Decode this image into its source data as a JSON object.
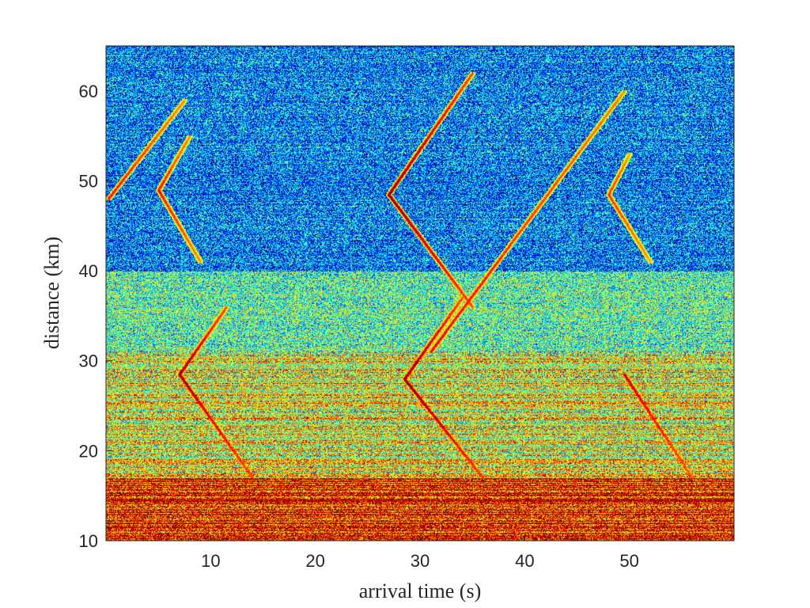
{
  "chart_data": {
    "type": "heatmap",
    "title": "",
    "xlabel": "arrival time (s)",
    "ylabel": "distance (km)",
    "xlim": [
      0,
      60
    ],
    "ylim": [
      10,
      65
    ],
    "xticks": [
      10,
      20,
      30,
      40,
      50
    ],
    "yticks": [
      10,
      20,
      30,
      40,
      50,
      60
    ],
    "grid": false,
    "colormap": "jet",
    "colors": {
      "low": "#00008f",
      "mid_low": "#2b6fbf",
      "mid": "#5fd6a0",
      "mid_high": "#f0e030",
      "high": "#e02010"
    },
    "features": [
      {
        "name": "near-field noise band",
        "kind": "band",
        "y_range": [
          10,
          17
        ],
        "intensity": 0.85
      },
      {
        "name": "mid noise band",
        "kind": "band",
        "y_range": [
          17,
          31
        ],
        "intensity": 0.6
      },
      {
        "name": "upper-mid noise band",
        "kind": "band",
        "y_range": [
          31,
          40
        ],
        "intensity": 0.45
      },
      {
        "name": "far noise",
        "kind": "band",
        "y_range": [
          40,
          65
        ],
        "intensity": 0.25
      }
    ],
    "events": [
      {
        "source_distance_km": 28.5,
        "source_time_s": 7.0,
        "apex_intensity": 0.95,
        "branches": [
          {
            "to_distance_km": 17,
            "to_time_s": 14.0
          },
          {
            "to_distance_km": 36,
            "to_time_s": 11.5
          }
        ]
      },
      {
        "source_distance_km": 28.0,
        "source_time_s": 28.5,
        "apex_intensity": 1.0,
        "branches": [
          {
            "to_distance_km": 17,
            "to_time_s": 36.0
          },
          {
            "to_distance_km": 37,
            "to_time_s": 34.0
          }
        ]
      },
      {
        "source_distance_km": 28.5,
        "source_time_s": 49.5,
        "apex_intensity": 0.85,
        "branches": [
          {
            "to_distance_km": 17,
            "to_time_s": 56.0
          }
        ]
      },
      {
        "source_distance_km": 48.5,
        "source_time_s": 27.0,
        "apex_intensity": 1.0,
        "branches": [
          {
            "to_distance_km": 62,
            "to_time_s": 35.0
          },
          {
            "to_distance_km": 36,
            "to_time_s": 35.0
          }
        ]
      },
      {
        "source_distance_km": 49.0,
        "source_time_s": 5.0,
        "apex_intensity": 0.7,
        "branches": [
          {
            "to_distance_km": 55,
            "to_time_s": 8.0
          },
          {
            "to_distance_km": 41,
            "to_time_s": 9.0
          }
        ]
      },
      {
        "source_distance_km": 48.5,
        "source_time_s": 48.0,
        "apex_intensity": 0.6,
        "branches": [
          {
            "to_distance_km": 53,
            "to_time_s": 50.0
          },
          {
            "to_distance_km": 41,
            "to_time_s": 52.0
          }
        ]
      },
      {
        "source_distance_km": 48.0,
        "source_time_s": 0.2,
        "apex_intensity": 0.7,
        "branches": [
          {
            "to_distance_km": 59,
            "to_time_s": 7.5
          }
        ]
      },
      {
        "source_distance_km": 31.0,
        "source_time_s": 31.0,
        "apex_intensity": 0.75,
        "branches": [
          {
            "to_distance_km": 60,
            "to_time_s": 49.5
          }
        ]
      }
    ]
  }
}
